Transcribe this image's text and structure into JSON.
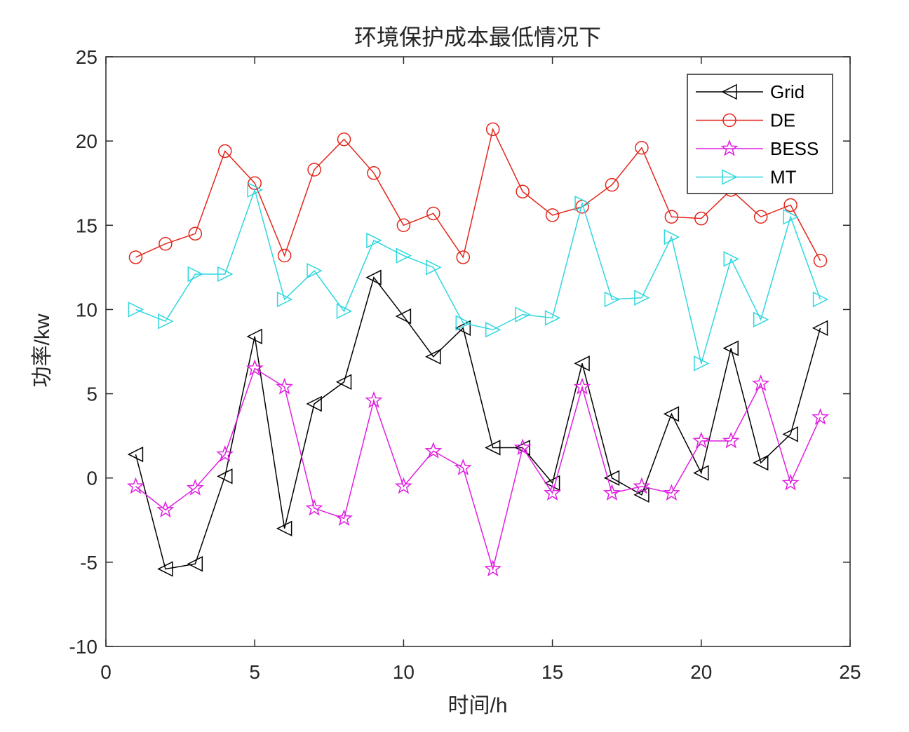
{
  "chart_data": {
    "type": "line",
    "title": "环境保护成本最低情况下",
    "xlabel": "时间/h",
    "ylabel": "功率/kw",
    "xlim": [
      0,
      25
    ],
    "ylim": [
      -10,
      25
    ],
    "xticks": [
      0,
      5,
      10,
      15,
      20,
      25
    ],
    "yticks": [
      -10,
      -5,
      0,
      5,
      10,
      15,
      20,
      25
    ],
    "grid": false,
    "legend_position": "top-right",
    "x": [
      1,
      2,
      3,
      4,
      5,
      6,
      7,
      8,
      9,
      10,
      11,
      12,
      13,
      14,
      15,
      16,
      17,
      18,
      19,
      20,
      21,
      22,
      23,
      24
    ],
    "series": [
      {
        "name": "Grid",
        "color": "#000000",
        "marker": "triangle-left",
        "values": [
          1.4,
          -5.4,
          -5.1,
          0.1,
          8.4,
          -3.0,
          4.4,
          5.7,
          11.9,
          9.6,
          7.2,
          8.9,
          1.8,
          1.8,
          -0.3,
          6.8,
          0.0,
          -1.0,
          3.8,
          0.3,
          7.7,
          0.9,
          2.6,
          8.9
        ]
      },
      {
        "name": "DE",
        "color": "#e3261b",
        "marker": "circle",
        "values": [
          13.1,
          13.9,
          14.5,
          19.4,
          17.5,
          13.2,
          18.3,
          20.1,
          18.1,
          15.0,
          15.7,
          13.1,
          20.7,
          17.0,
          15.6,
          16.1,
          17.4,
          19.6,
          15.5,
          15.4,
          17.1,
          15.5,
          16.2,
          12.9
        ]
      },
      {
        "name": "BESS",
        "color": "#e01fe0",
        "marker": "star",
        "values": [
          -0.5,
          -1.9,
          -0.6,
          1.4,
          6.5,
          5.4,
          -1.8,
          -2.4,
          4.6,
          -0.5,
          1.6,
          0.6,
          -5.4,
          1.8,
          -0.9,
          5.4,
          -0.9,
          -0.5,
          -0.9,
          2.2,
          2.2,
          5.6,
          -0.3,
          3.6
        ]
      },
      {
        "name": "MT",
        "color": "#2fd7df",
        "marker": "triangle-right",
        "values": [
          10.0,
          9.3,
          12.1,
          12.1,
          17.1,
          10.6,
          12.3,
          9.9,
          14.1,
          13.2,
          12.5,
          9.2,
          8.8,
          9.7,
          9.5,
          16.3,
          10.6,
          10.7,
          14.3,
          6.8,
          13.0,
          9.4,
          15.5,
          10.6
        ]
      }
    ]
  }
}
